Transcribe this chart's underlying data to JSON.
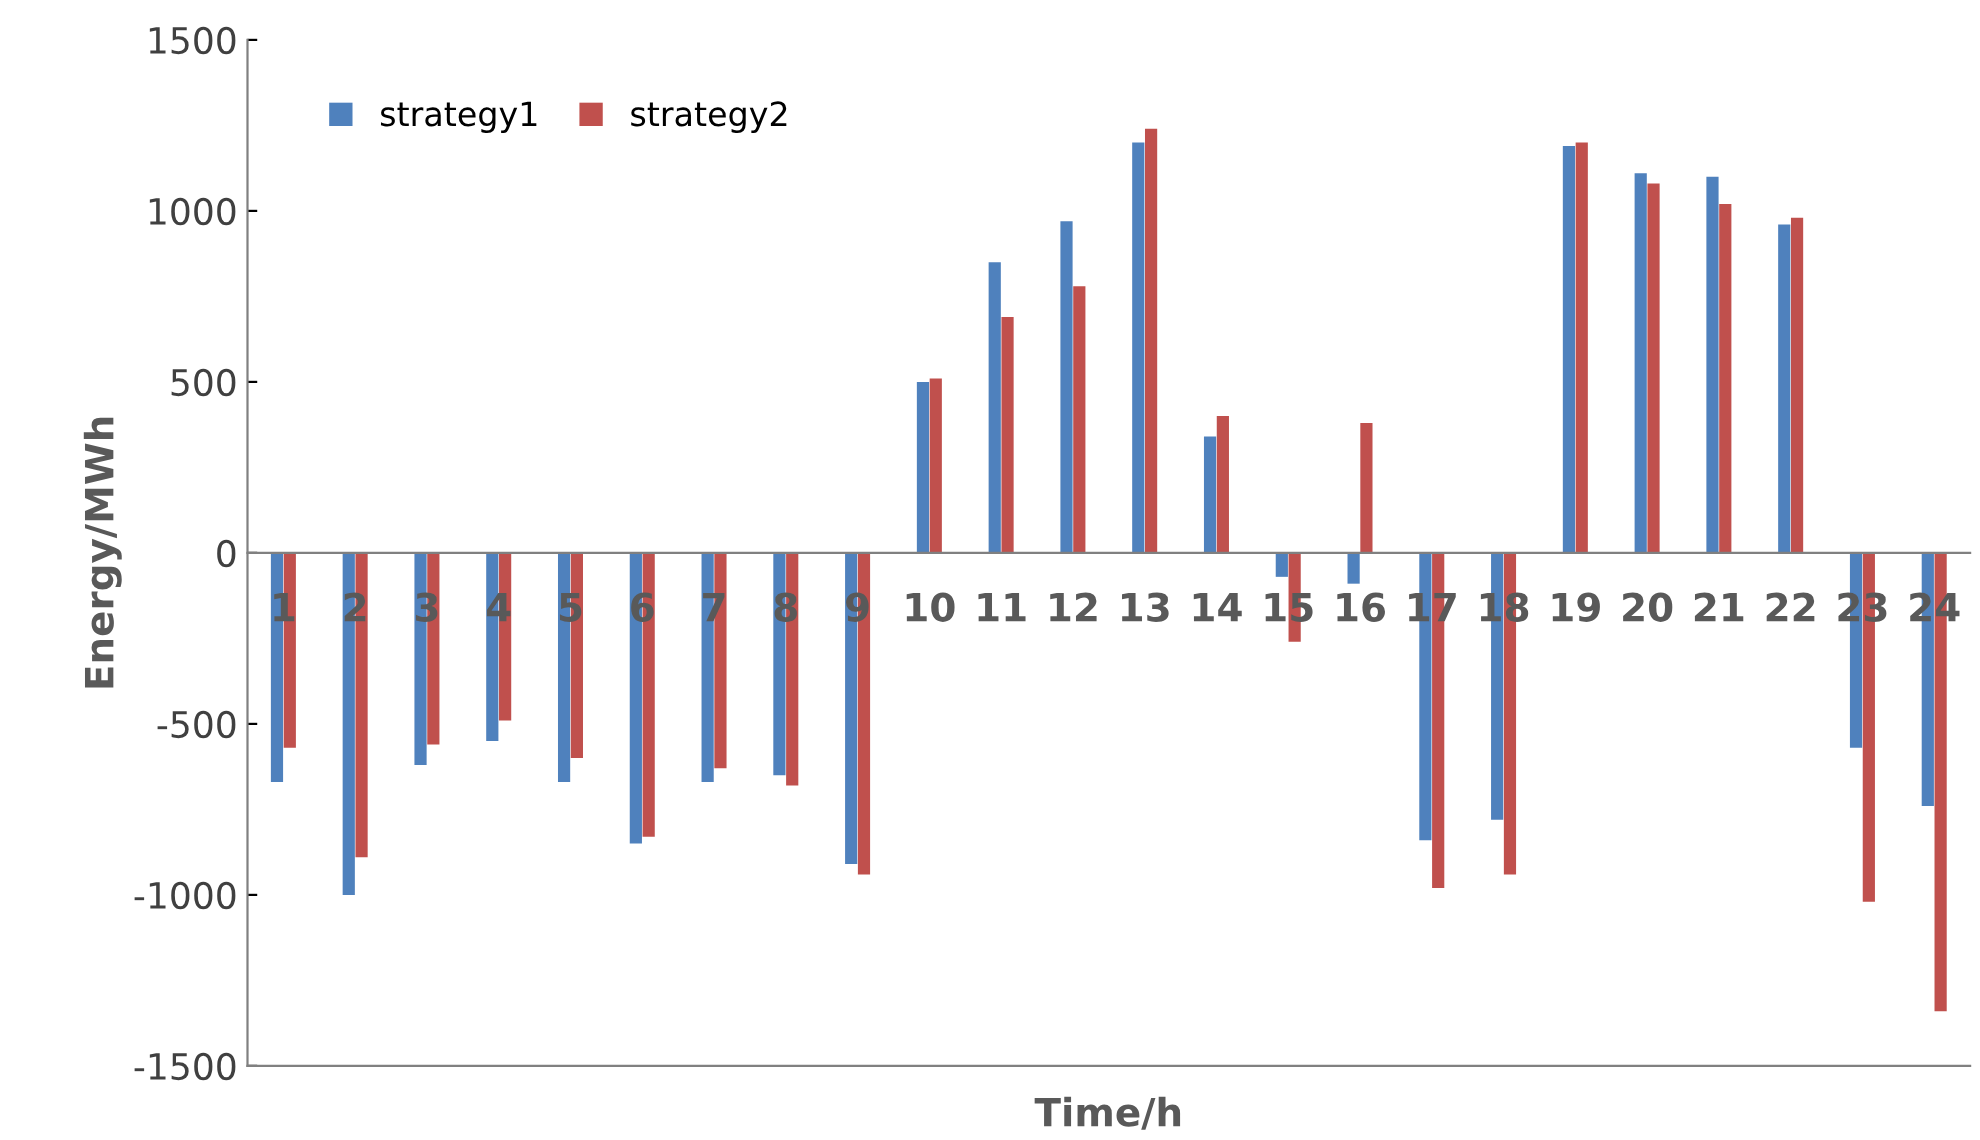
{
  "chart_data": {
    "type": "bar",
    "xlabel": "Time/h",
    "ylabel": "Energy/MWh",
    "categories": [
      "1",
      "2",
      "3",
      "4",
      "5",
      "6",
      "7",
      "8",
      "9",
      "10",
      "11",
      "12",
      "13",
      "14",
      "15",
      "16",
      "17",
      "18",
      "19",
      "20",
      "21",
      "22",
      "23",
      "24"
    ],
    "series": [
      {
        "name": "strategy1",
        "color": "#4f81bd",
        "values": [
          -670,
          -1000,
          -620,
          -550,
          -670,
          -850,
          -670,
          -650,
          -910,
          500,
          850,
          970,
          1200,
          340,
          -70,
          -90,
          -840,
          -780,
          1190,
          1110,
          1100,
          960,
          -570,
          -740
        ]
      },
      {
        "name": "strategy2",
        "color": "#c0504d",
        "values": [
          -570,
          -890,
          -560,
          -490,
          -600,
          -830,
          -630,
          -680,
          -940,
          510,
          690,
          780,
          1240,
          400,
          -260,
          380,
          -980,
          -940,
          1200,
          1080,
          1020,
          980,
          -1020,
          -1340
        ]
      }
    ],
    "ylim": [
      -1500,
      1500
    ],
    "yticks": [
      -1500,
      -1000,
      -500,
      0,
      500,
      1000,
      1500
    ],
    "grid": false,
    "legend": "top left"
  }
}
